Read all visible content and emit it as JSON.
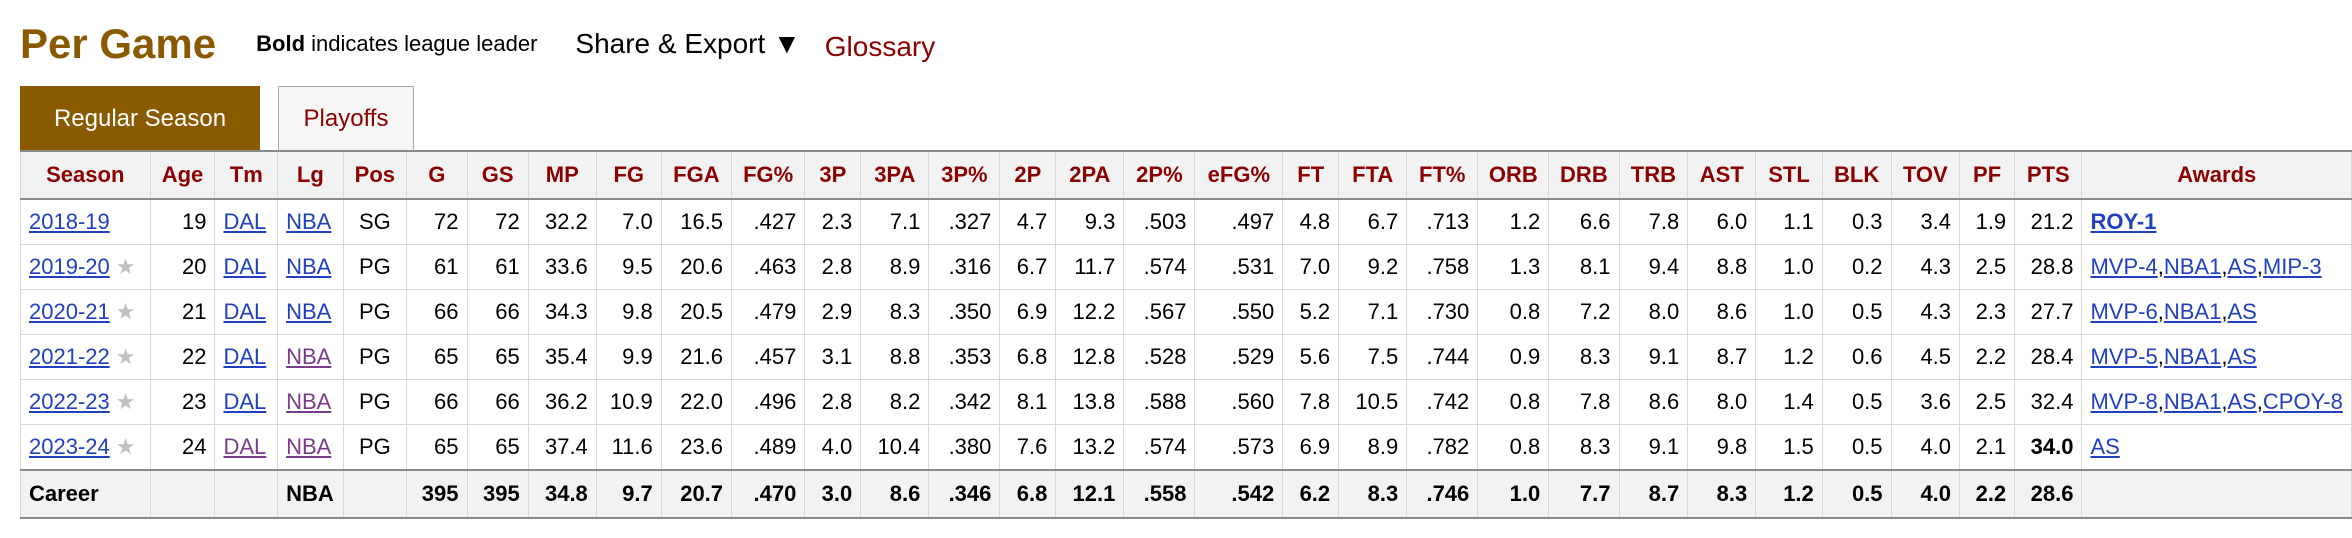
{
  "header": {
    "title": "Per Game",
    "note_bold": "Bold",
    "note_rest": " indicates league leader",
    "share_label": "Share & Export ▼",
    "glossary_label": "Glossary"
  },
  "tabs": [
    {
      "label": "Regular Season",
      "active": true
    },
    {
      "label": "Playoffs",
      "active": false
    }
  ],
  "columns": [
    "Season",
    "Age",
    "Tm",
    "Lg",
    "Pos",
    "G",
    "GS",
    "MP",
    "FG",
    "FGA",
    "FG%",
    "3P",
    "3PA",
    "3P%",
    "2P",
    "2PA",
    "2P%",
    "eFG%",
    "FT",
    "FTA",
    "FT%",
    "ORB",
    "DRB",
    "TRB",
    "AST",
    "STL",
    "BLK",
    "TOV",
    "PF",
    "PTS",
    "Awards"
  ],
  "rows": [
    {
      "season": "2018-19",
      "star": false,
      "age": "19",
      "tm": "DAL",
      "lg": "NBA",
      "pos": "SG",
      "g": "72",
      "gs": "72",
      "mp": "32.2",
      "fg": "7.0",
      "fga": "16.5",
      "fgp": ".427",
      "p3": "2.3",
      "pa3": "7.1",
      "p3p": ".327",
      "p2": "4.7",
      "pa2": "9.3",
      "p2p": ".503",
      "efg": ".497",
      "ft": "4.8",
      "fta": "6.7",
      "ftp": ".713",
      "orb": "1.2",
      "drb": "6.6",
      "trb": "7.8",
      "ast": "6.0",
      "stl": "1.1",
      "blk": "0.3",
      "tov": "3.4",
      "pf": "1.9",
      "pts": "21.2",
      "pts_bold": false,
      "awards": [
        "ROY-1"
      ],
      "awards_bold": true
    },
    {
      "season": "2019-20",
      "star": true,
      "age": "20",
      "tm": "DAL",
      "lg": "NBA",
      "pos": "PG",
      "g": "61",
      "gs": "61",
      "mp": "33.6",
      "fg": "9.5",
      "fga": "20.6",
      "fgp": ".463",
      "p3": "2.8",
      "pa3": "8.9",
      "p3p": ".316",
      "p2": "6.7",
      "pa2": "11.7",
      "p2p": ".574",
      "efg": ".531",
      "ft": "7.0",
      "fta": "9.2",
      "ftp": ".758",
      "orb": "1.3",
      "drb": "8.1",
      "trb": "9.4",
      "ast": "8.8",
      "stl": "1.0",
      "blk": "0.2",
      "tov": "4.3",
      "pf": "2.5",
      "pts": "28.8",
      "pts_bold": false,
      "awards": [
        "MVP-4",
        "NBA1",
        "AS",
        "MIP-3"
      ],
      "awards_bold": false
    },
    {
      "season": "2020-21",
      "star": true,
      "age": "21",
      "tm": "DAL",
      "lg": "NBA",
      "pos": "PG",
      "g": "66",
      "gs": "66",
      "mp": "34.3",
      "fg": "9.8",
      "fga": "20.5",
      "fgp": ".479",
      "p3": "2.9",
      "pa3": "8.3",
      "p3p": ".350",
      "p2": "6.9",
      "pa2": "12.2",
      "p2p": ".567",
      "efg": ".550",
      "ft": "5.2",
      "fta": "7.1",
      "ftp": ".730",
      "orb": "0.8",
      "drb": "7.2",
      "trb": "8.0",
      "ast": "8.6",
      "stl": "1.0",
      "blk": "0.5",
      "tov": "4.3",
      "pf": "2.3",
      "pts": "27.7",
      "pts_bold": false,
      "awards": [
        "MVP-6",
        "NBA1",
        "AS"
      ],
      "awards_bold": false
    },
    {
      "season": "2021-22",
      "star": true,
      "age": "22",
      "tm": "DAL",
      "lg": "NBA",
      "pos": "PG",
      "g": "65",
      "gs": "65",
      "mp": "35.4",
      "fg": "9.9",
      "fga": "21.6",
      "fgp": ".457",
      "p3": "3.1",
      "pa3": "8.8",
      "p3p": ".353",
      "p2": "6.8",
      "pa2": "12.8",
      "p2p": ".528",
      "efg": ".529",
      "ft": "5.6",
      "fta": "7.5",
      "ftp": ".744",
      "orb": "0.9",
      "drb": "8.3",
      "trb": "9.1",
      "ast": "8.7",
      "stl": "1.2",
      "blk": "0.6",
      "tov": "4.5",
      "pf": "2.2",
      "pts": "28.4",
      "pts_bold": false,
      "awards": [
        "MVP-5",
        "NBA1",
        "AS"
      ],
      "awards_bold": false,
      "lg_visited": true
    },
    {
      "season": "2022-23",
      "star": true,
      "age": "23",
      "tm": "DAL",
      "lg": "NBA",
      "pos": "PG",
      "g": "66",
      "gs": "66",
      "mp": "36.2",
      "fg": "10.9",
      "fga": "22.0",
      "fgp": ".496",
      "p3": "2.8",
      "pa3": "8.2",
      "p3p": ".342",
      "p2": "8.1",
      "pa2": "13.8",
      "p2p": ".588",
      "efg": ".560",
      "ft": "7.8",
      "fta": "10.5",
      "ftp": ".742",
      "orb": "0.8",
      "drb": "7.8",
      "trb": "8.6",
      "ast": "8.0",
      "stl": "1.4",
      "blk": "0.5",
      "tov": "3.6",
      "pf": "2.5",
      "pts": "32.4",
      "pts_bold": false,
      "awards": [
        "MVP-8",
        "NBA1",
        "AS",
        "CPOY-8"
      ],
      "awards_bold": false,
      "lg_visited": true
    },
    {
      "season": "2023-24",
      "star": true,
      "age": "24",
      "tm": "DAL",
      "lg": "NBA",
      "pos": "PG",
      "g": "65",
      "gs": "65",
      "mp": "37.4",
      "fg": "11.6",
      "fga": "23.6",
      "fgp": ".489",
      "p3": "4.0",
      "pa3": "10.4",
      "p3p": ".380",
      "p2": "7.6",
      "pa2": "13.2",
      "p2p": ".574",
      "efg": ".573",
      "ft": "6.9",
      "fta": "8.9",
      "ftp": ".782",
      "orb": "0.8",
      "drb": "8.3",
      "trb": "9.1",
      "ast": "9.8",
      "stl": "1.5",
      "blk": "0.5",
      "tov": "4.0",
      "pf": "2.1",
      "pts": "34.0",
      "pts_bold": true,
      "awards": [
        "AS"
      ],
      "awards_bold": false,
      "lg_visited": true,
      "tm_visited": true
    }
  ],
  "footer": {
    "label": "Career",
    "lg": "NBA",
    "g": "395",
    "gs": "395",
    "mp": "34.8",
    "fg": "9.7",
    "fga": "20.7",
    "fgp": ".470",
    "p3": "3.0",
    "pa3": "8.6",
    "p3p": ".346",
    "p2": "6.8",
    "pa2": "12.1",
    "p2p": ".558",
    "efg": ".542",
    "ft": "6.2",
    "fta": "8.3",
    "ftp": ".746",
    "orb": "1.0",
    "drb": "7.7",
    "trb": "8.7",
    "ast": "8.3",
    "stl": "1.2",
    "blk": "0.5",
    "tov": "4.0",
    "pf": "2.2",
    "pts": "28.6"
  },
  "colors": {
    "brand": "#8a5a00",
    "header_text": "#8b0000",
    "link": "#2040c0",
    "visited": "#7a3c8c"
  }
}
